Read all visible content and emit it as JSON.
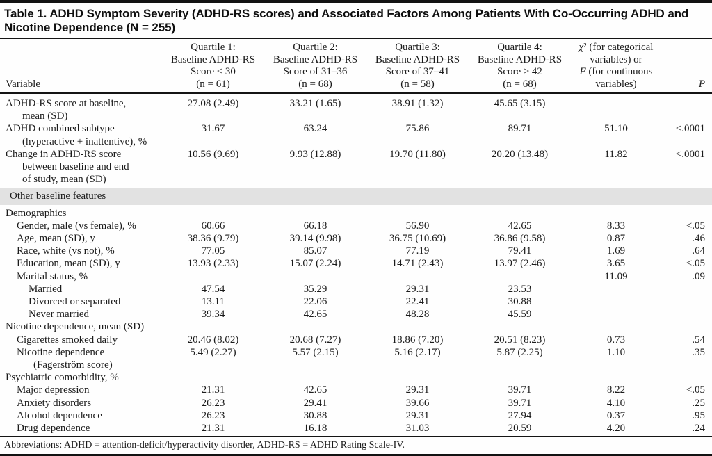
{
  "title": {
    "lines": [
      "Table 1. ADHD Symptom Severity (ADHD-RS scores) and Associated Factors Among Patients With Co-Occurring ADHD and",
      "Nicotine Dependence (N = 255)"
    ]
  },
  "header": {
    "variable_label": "Variable",
    "quartiles": [
      {
        "lines": [
          "Quartile 1:",
          "Baseline ADHD-RS",
          "Score ≤ 30",
          "(n = 61)"
        ]
      },
      {
        "lines": [
          "Quartile 2:",
          "Baseline ADHD-RS",
          "Score of 31–36",
          "(n = 68)"
        ]
      },
      {
        "lines": [
          "Quartile 3:",
          "Baseline ADHD-RS",
          "Score of 37–41",
          "(n = 58)"
        ]
      },
      {
        "lines": [
          "Quartile 4:",
          "Baseline ADHD-RS",
          "Score ≥ 42",
          "(n = 68)"
        ]
      }
    ],
    "stat_lines": [
      "χ² (for categorical",
      "variables) or",
      "F (for continuous",
      "variables)"
    ],
    "p_label": "P"
  },
  "rows": [
    {
      "t": "data",
      "ind": 0,
      "lines": [
        "ADHD-RS score at baseline,",
        "mean (SD)"
      ],
      "v": [
        "27.08 (2.49)",
        "33.21 (1.65)",
        "38.91 (1.32)",
        "45.65 (3.15)",
        "",
        ""
      ]
    },
    {
      "t": "data",
      "ind": 0,
      "lines": [
        "ADHD combined subtype",
        "(hyperactive + inattentive), %"
      ],
      "v": [
        "31.67",
        "63.24",
        "75.86",
        "89.71",
        "51.10",
        "<.0001"
      ]
    },
    {
      "t": "data",
      "ind": 0,
      "lines": [
        "Change in ADHD-RS score",
        "between baseline and end",
        "of study, mean (SD)"
      ],
      "v": [
        "10.56 (9.69)",
        "9.93 (12.88)",
        "19.70 (11.80)",
        "20.20 (13.48)",
        "11.82",
        "<.0001"
      ]
    },
    {
      "t": "section",
      "label": "Other baseline features"
    },
    {
      "t": "sub",
      "lines": [
        "Demographics"
      ],
      "v": [
        "",
        "",
        "",
        "",
        "",
        ""
      ]
    },
    {
      "t": "data",
      "ind": 1,
      "lines": [
        "Gender, male (vs female), %"
      ],
      "v": [
        "60.66",
        "66.18",
        "56.90",
        "42.65",
        "8.33",
        "<.05"
      ]
    },
    {
      "t": "data",
      "ind": 1,
      "lines": [
        "Age, mean (SD), y"
      ],
      "v": [
        "38.36 (9.79)",
        "39.14 (9.98)",
        "36.75 (10.69)",
        "36.86 (9.58)",
        "0.87",
        ".46"
      ]
    },
    {
      "t": "data",
      "ind": 1,
      "lines": [
        "Race, white (vs not), %"
      ],
      "v": [
        "77.05",
        "85.07",
        "77.19",
        "79.41",
        "1.69",
        ".64"
      ]
    },
    {
      "t": "data",
      "ind": 1,
      "lines": [
        "Education, mean (SD), y"
      ],
      "v": [
        "13.93 (2.33)",
        "15.07 (2.24)",
        "14.71 (2.43)",
        "13.97 (2.46)",
        "3.65",
        "<.05"
      ]
    },
    {
      "t": "data",
      "ind": 1,
      "lines": [
        "Marital status, %"
      ],
      "v": [
        "",
        "",
        "",
        "",
        "11.09",
        ".09"
      ]
    },
    {
      "t": "data",
      "ind": 2,
      "lines": [
        "Married"
      ],
      "v": [
        "47.54",
        "35.29",
        "29.31",
        "23.53",
        "",
        ""
      ]
    },
    {
      "t": "data",
      "ind": 2,
      "lines": [
        "Divorced or separated"
      ],
      "v": [
        "13.11",
        "22.06",
        "22.41",
        "30.88",
        "",
        ""
      ]
    },
    {
      "t": "data",
      "ind": 2,
      "lines": [
        "Never married"
      ],
      "v": [
        "39.34",
        "42.65",
        "48.28",
        "45.59",
        "",
        ""
      ]
    },
    {
      "t": "sub",
      "lines": [
        "Nicotine dependence, mean (SD)"
      ],
      "v": [
        "",
        "",
        "",
        "",
        "",
        ""
      ]
    },
    {
      "t": "data",
      "ind": 1,
      "lines": [
        "Cigarettes smoked daily"
      ],
      "v": [
        "20.46 (8.02)",
        "20.68 (7.27)",
        "18.86 (7.20)",
        "20.51 (8.23)",
        "0.73",
        ".54"
      ]
    },
    {
      "t": "data",
      "ind": 1,
      "lines": [
        "Nicotine dependence",
        "(Fagerström score)"
      ],
      "v": [
        "5.49 (2.27)",
        "5.57 (2.15)",
        "5.16 (2.17)",
        "5.87 (2.25)",
        "1.10",
        ".35"
      ]
    },
    {
      "t": "sub",
      "lines": [
        "Psychiatric comorbidity, %"
      ],
      "v": [
        "",
        "",
        "",
        "",
        "",
        ""
      ]
    },
    {
      "t": "data",
      "ind": 1,
      "lines": [
        "Major depression"
      ],
      "v": [
        "21.31",
        "42.65",
        "29.31",
        "39.71",
        "8.22",
        "<.05"
      ]
    },
    {
      "t": "data",
      "ind": 1,
      "lines": [
        "Anxiety disorders"
      ],
      "v": [
        "26.23",
        "29.41",
        "39.66",
        "39.71",
        "4.10",
        ".25"
      ]
    },
    {
      "t": "data",
      "ind": 1,
      "lines": [
        "Alcohol dependence"
      ],
      "v": [
        "26.23",
        "30.88",
        "29.31",
        "27.94",
        "0.37",
        ".95"
      ]
    },
    {
      "t": "data",
      "ind": 1,
      "lines": [
        "Drug dependence"
      ],
      "v": [
        "21.31",
        "16.18",
        "31.03",
        "20.59",
        "4.20",
        ".24"
      ]
    }
  ],
  "footnote": "Abbreviations: ADHD = attention-deficit/hyperactivity disorder, ADHD-RS = ADHD Rating Scale-IV.",
  "colors": {
    "section_band": "#e2e2e2",
    "rule": "#141414",
    "text": "#1b1b1b"
  }
}
